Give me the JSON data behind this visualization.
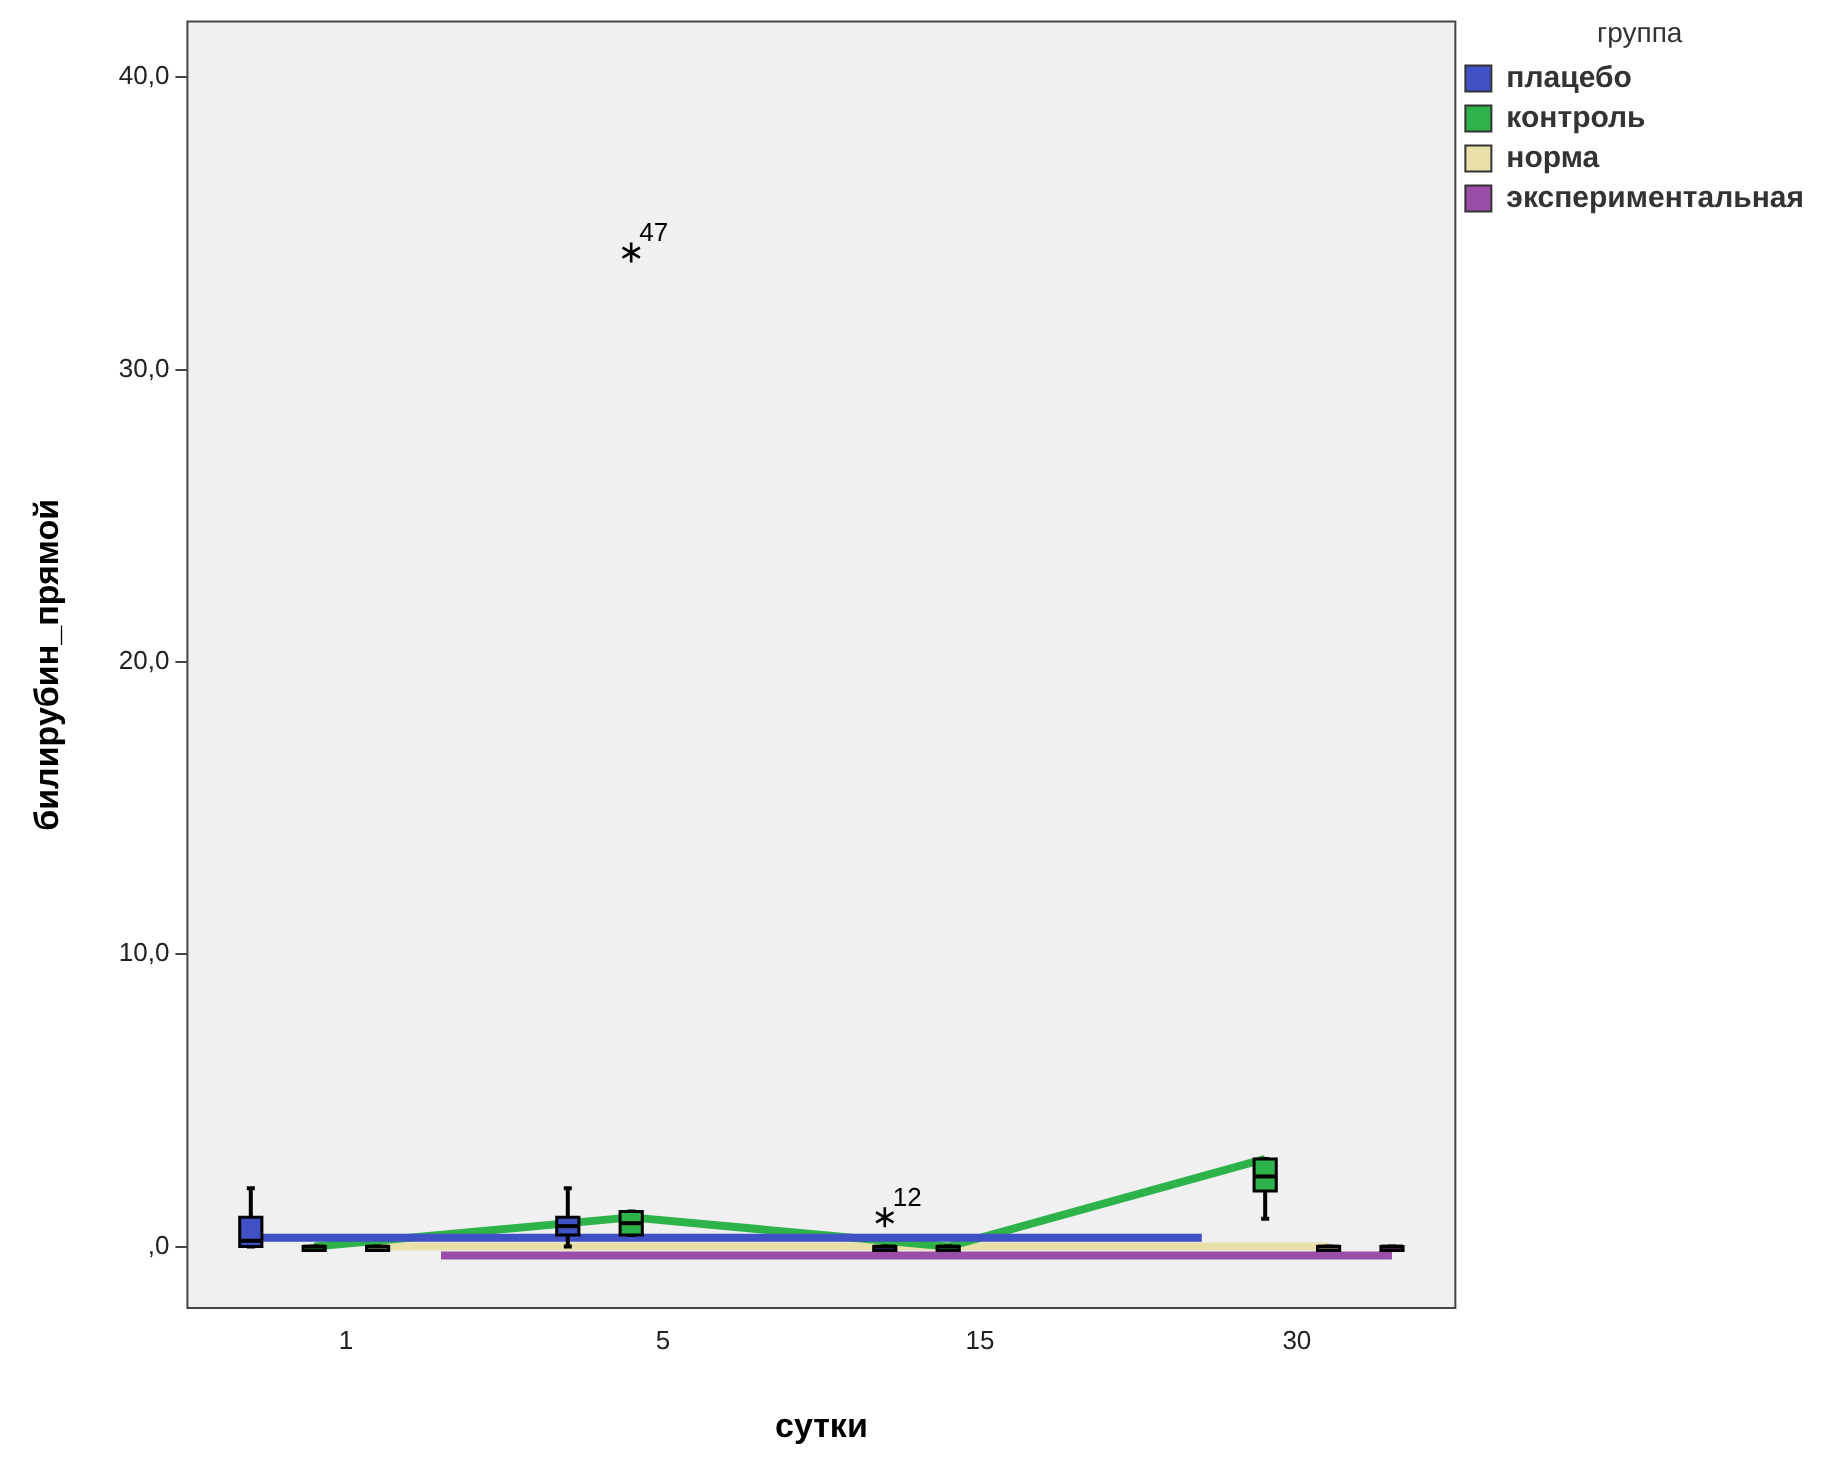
{
  "chart_data": {
    "type": "box",
    "xlabel": "сутки",
    "ylabel": "билирубин_прямой",
    "legend_title": "группа",
    "legend": "top right",
    "grid": false,
    "categories": [
      "1",
      "5",
      "15",
      "30"
    ],
    "ylim": [
      -2.1,
      41.9
    ],
    "yticks": [
      {
        "value": 0,
        "label": ",0"
      },
      {
        "value": 10,
        "label": "10,0"
      },
      {
        "value": 20,
        "label": "20,0"
      },
      {
        "value": 30,
        "label": "30,0"
      },
      {
        "value": 40,
        "label": "40,0"
      }
    ],
    "series": [
      {
        "name": "плацебо",
        "color": "#3f51c4",
        "boxes": [
          {
            "low": 0,
            "q1": 0,
            "median": 0.2,
            "q3": 1,
            "high": 2
          },
          {
            "low": 0,
            "q1": 0.4,
            "median": 0.7,
            "q3": 1,
            "high": 2
          },
          {
            "low": 0,
            "q1": 0,
            "median": 0,
            "q3": 0,
            "high": 0,
            "outliers": [
              1
            ]
          },
          null
        ]
      },
      {
        "name": "контроль",
        "color": "#2db34a",
        "boxes": [
          {
            "low": 0,
            "q1": 0,
            "median": 0,
            "q3": 0,
            "high": 0
          },
          {
            "low": 0.4,
            "q1": 0.4,
            "median": 0.8,
            "q3": 1.2,
            "high": 1.2,
            "outliers": [
              34
            ]
          },
          {
            "low": 0,
            "q1": 0,
            "median": 0,
            "q3": 0,
            "high": 0
          },
          {
            "low": 0.95,
            "q1": 1.9,
            "median": 2.4,
            "q3": 3,
            "high": 3
          }
        ]
      },
      {
        "name": "норма",
        "color": "#e8e0a8",
        "boxes": [
          {
            "low": 0,
            "q1": 0,
            "median": 0,
            "q3": 0,
            "high": 0
          },
          null,
          null,
          {
            "low": 0,
            "q1": 0,
            "median": 0,
            "q3": 0,
            "high": 0
          }
        ]
      },
      {
        "name": "экспериментальная",
        "color": "#9b4ea8",
        "boxes": [
          null,
          null,
          null,
          {
            "low": 0,
            "q1": 0,
            "median": 0,
            "q3": 0,
            "high": 0
          }
        ]
      },
      {
        "type": "line",
        "color": "#3f51c4",
        "values": [
          0.3,
          0.3,
          0.3,
          0.3
        ]
      },
      {
        "type": "line",
        "color": "#2db34a",
        "values": [
          0,
          1,
          0,
          3
        ]
      },
      {
        "type": "line",
        "color": "#e8e0a8",
        "values": [
          0,
          0,
          0,
          0
        ]
      },
      {
        "type": "line",
        "color": "#9b4ea8",
        "values": [
          -0.3,
          -0.3,
          -0.3,
          -0.3
        ]
      }
    ],
    "annotations": [
      "12",
      "47"
    ]
  }
}
